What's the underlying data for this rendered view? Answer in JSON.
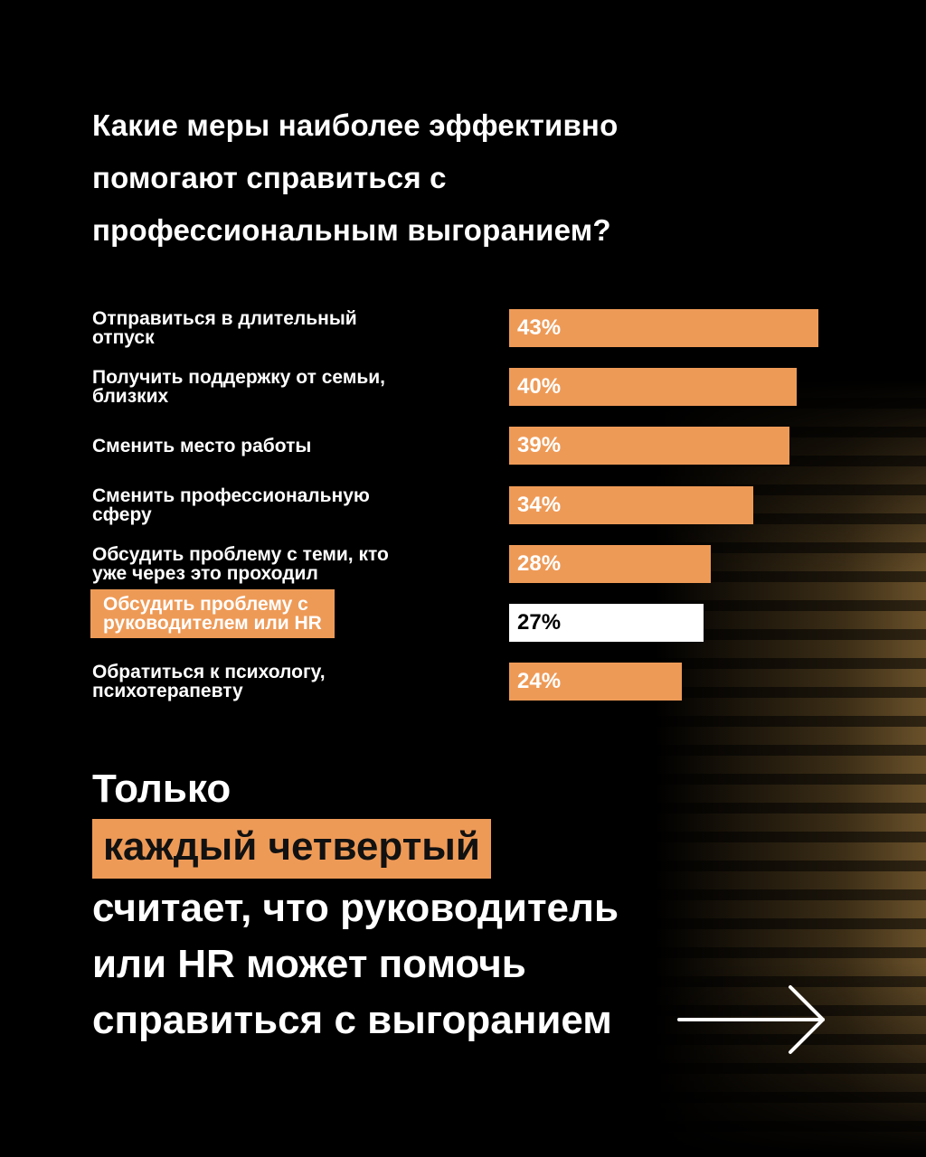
{
  "title": "Какие меры наиболее эффективно помогают справиться с профессиональным выгоранием?",
  "colors": {
    "accent": "#ee9a57",
    "highlight_bar": "#ffffff",
    "background": "#000000"
  },
  "chart_data": {
    "type": "bar",
    "orientation": "horizontal",
    "title": "Какие меры наиболее эффективно помогают справиться с профессиональным выгоранием?",
    "categories": [
      "Отправиться в длительный\nотпуск",
      "Получить поддержку от семьи,\nблизких",
      "Сменить место работы",
      "Сменить профессиональную\nсферу",
      "Обсудить проблему с теми, кто\nуже через это проходил",
      "Обсудить проблему с\nруководителем или HR",
      "Обратиться к психологу,\nпсихотерапевту"
    ],
    "values": [
      43,
      40,
      39,
      34,
      28,
      27,
      24
    ],
    "value_labels": [
      "43%",
      "40%",
      "39%",
      "34%",
      "28%",
      "27%",
      "24%"
    ],
    "highlighted_index": 5,
    "unit": "%",
    "xlim": [
      0,
      43
    ]
  },
  "conclusion": {
    "line1": "Только",
    "highlight": "каждый четвертый",
    "line3": "считает, что руководитель",
    "line4": "или HR может помочь",
    "line5": "справиться с выгоранием"
  },
  "icons": {
    "next": "arrow-right-icon"
  }
}
